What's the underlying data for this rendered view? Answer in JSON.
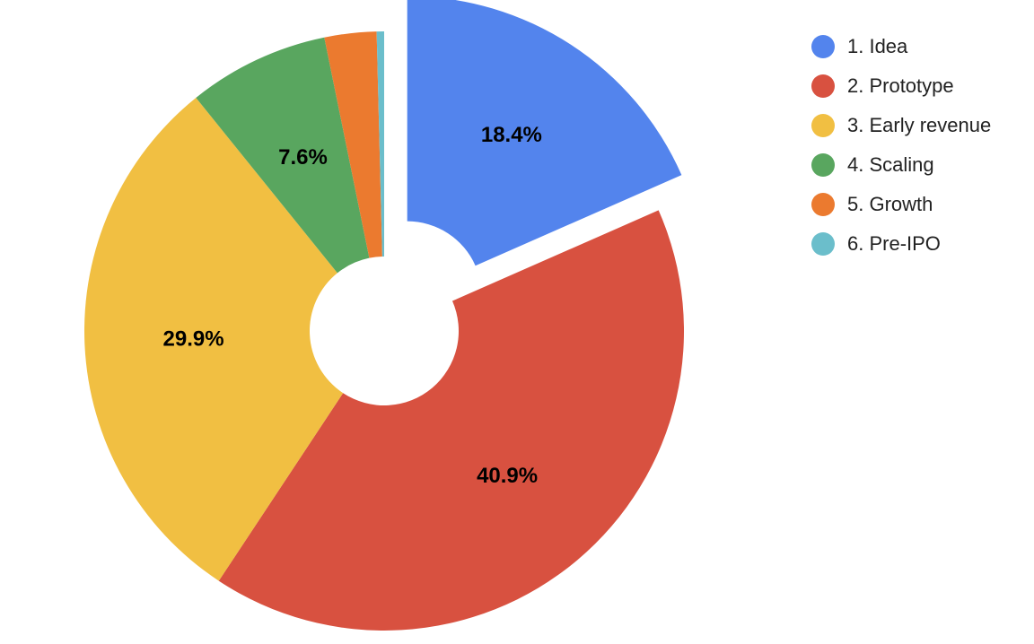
{
  "chart_data": {
    "type": "pie",
    "donut": true,
    "title": "",
    "slices": [
      {
        "label": "1. Idea",
        "value": 18.4,
        "display": "18.4%",
        "color": "#5384ED",
        "exploded": true
      },
      {
        "label": "2. Prototype",
        "value": 40.9,
        "display": "40.9%",
        "color": "#D85140",
        "exploded": false
      },
      {
        "label": "3. Early revenue",
        "value": 29.9,
        "display": "29.9%",
        "color": "#F1BF42",
        "exploded": false
      },
      {
        "label": "4. Scaling",
        "value": 7.6,
        "display": "7.6%",
        "color": "#59A65F",
        "exploded": false
      },
      {
        "label": "5. Growth",
        "value": 2.8,
        "display": "",
        "color": "#EB7A2F",
        "exploded": false
      },
      {
        "label": "6. Pre-IPO",
        "value": 0.4,
        "display": "",
        "color": "#6BBECB",
        "exploded": false
      }
    ],
    "legend_position": "right"
  }
}
